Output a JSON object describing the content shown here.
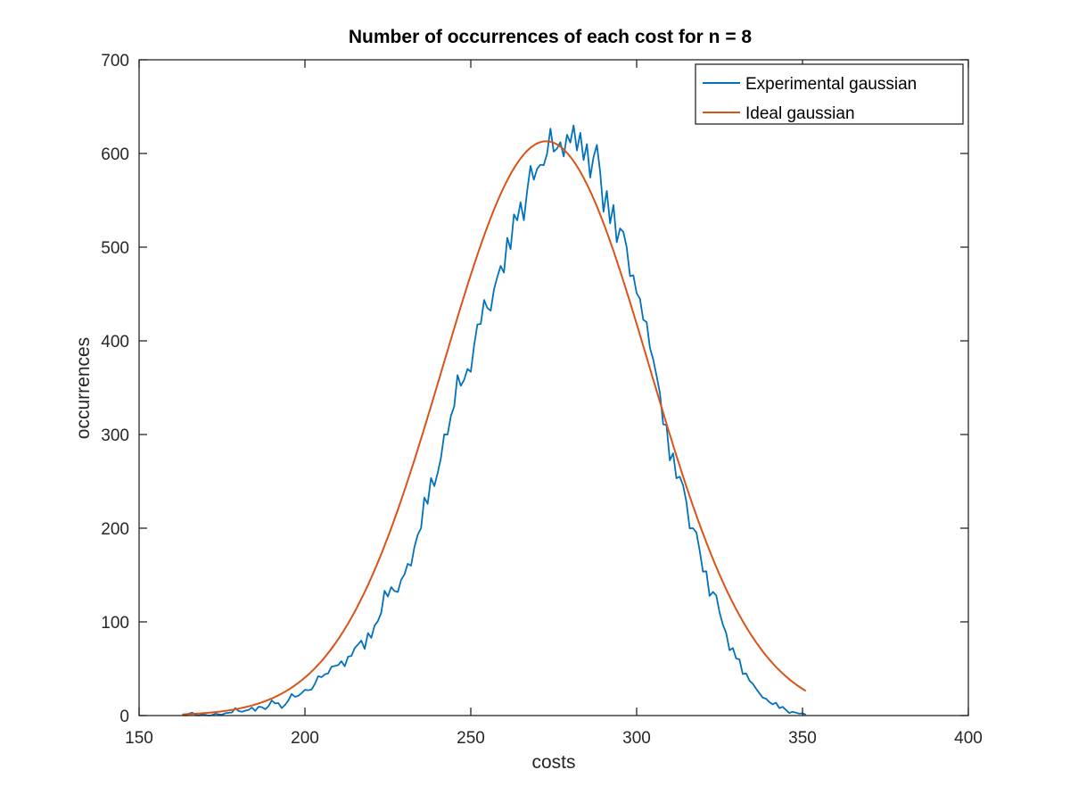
{
  "chart_data": {
    "type": "line",
    "title": "Number of occurrences of each cost for n = 8",
    "xlabel": "costs",
    "ylabel": "occurrences",
    "xlim": [
      150,
      400
    ],
    "ylim": [
      0,
      700
    ],
    "xticks": [
      "150",
      "200",
      "250",
      "300",
      "350",
      "400"
    ],
    "yticks": [
      "0",
      "100",
      "200",
      "300",
      "400",
      "500",
      "600",
      "700"
    ],
    "grid": false,
    "legend_position": "top-right",
    "series": [
      {
        "name": "Experimental gaussian",
        "color": "#0072BD",
        "x": [
          163,
          165,
          167,
          169,
          171,
          173,
          175,
          177,
          179,
          181,
          183,
          185,
          187,
          189,
          191,
          193,
          195,
          197,
          199,
          201,
          203,
          205,
          207,
          209,
          211,
          213,
          215,
          217,
          219,
          221,
          223,
          225,
          227,
          229,
          231,
          233,
          235,
          237,
          239,
          241,
          243,
          245,
          247,
          249,
          251,
          253,
          255,
          257,
          259,
          261,
          263,
          265,
          267,
          269,
          271,
          273,
          275,
          277,
          279,
          281,
          283,
          285,
          287,
          289,
          291,
          293,
          295,
          297,
          299,
          301,
          303,
          305,
          307,
          309,
          311,
          313,
          315,
          317,
          319,
          321,
          323,
          325,
          327,
          329,
          331,
          333,
          335,
          337,
          339,
          341,
          343,
          345,
          347,
          349,
          351
        ],
        "y": [
          1,
          2,
          1,
          1,
          0,
          2,
          1,
          3,
          8,
          4,
          6,
          5,
          9,
          10,
          13,
          8,
          16,
          20,
          24,
          27,
          34,
          41,
          45,
          53,
          58,
          63,
          72,
          80,
          88,
          96,
          110,
          127,
          133,
          145,
          162,
          180,
          200,
          226,
          245,
          275,
          300,
          330,
          352,
          370,
          395,
          418,
          435,
          455,
          480,
          510,
          535,
          548,
          560,
          572,
          588,
          600,
          602,
          612,
          620,
          630,
          622,
          610,
          596,
          580,
          560,
          545,
          520,
          500,
          470,
          445,
          420,
          380,
          345,
          310,
          280,
          255,
          228,
          200,
          176,
          154,
          132,
          110,
          88,
          72,
          60,
          45,
          34,
          24,
          18,
          12,
          8,
          6,
          4,
          2,
          1
        ]
      },
      {
        "name": "Ideal gaussian",
        "color": "#D95319",
        "mean": 272.7,
        "sigma": 31.2,
        "amplitude": 613,
        "x_range": [
          163,
          351
        ]
      }
    ]
  }
}
